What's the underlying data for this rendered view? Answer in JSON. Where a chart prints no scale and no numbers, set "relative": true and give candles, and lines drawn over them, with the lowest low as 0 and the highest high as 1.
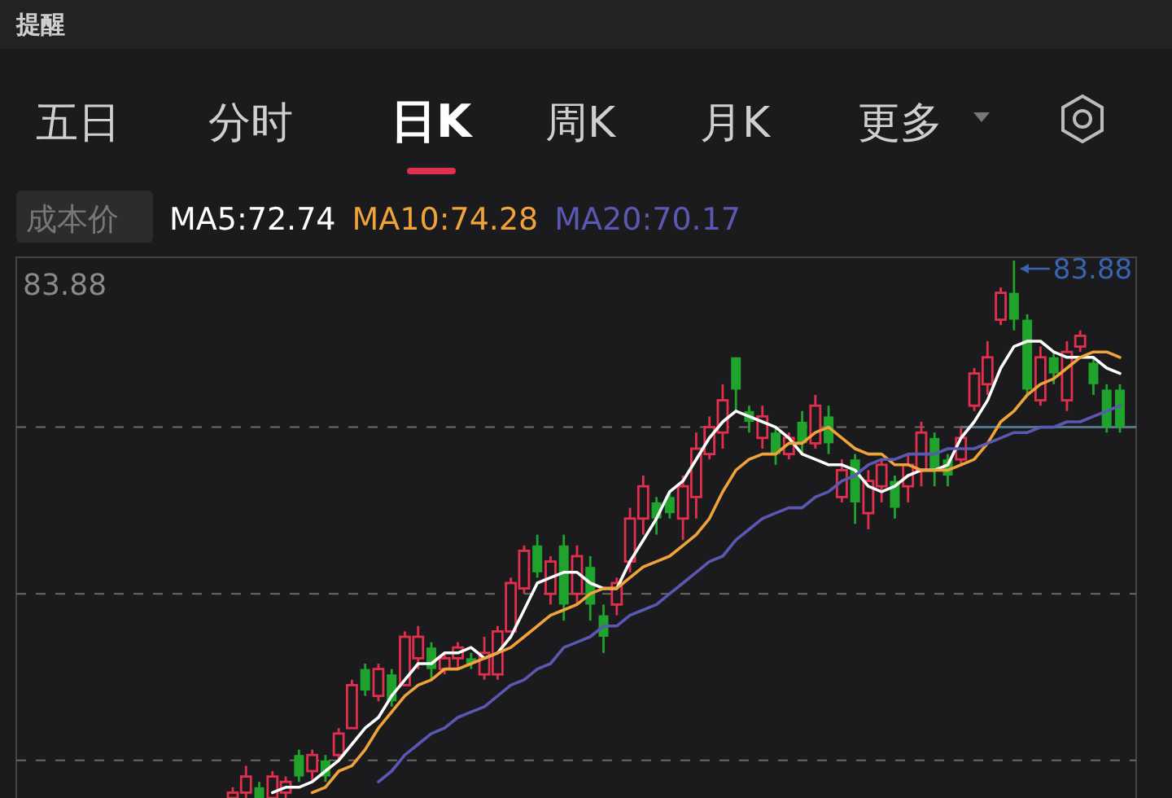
{
  "chart_data": {
    "type": "candlestick",
    "relative": true,
    "legend": "top left",
    "categories": [
      null,
      null,
      null,
      null,
      null,
      null,
      null,
      null,
      null,
      null,
      null,
      null,
      null,
      null,
      null,
      null,
      null,
      null,
      null,
      null,
      null,
      null,
      null,
      null,
      null,
      null,
      null,
      null,
      null,
      null,
      null,
      null,
      null,
      null,
      null,
      null,
      null,
      null,
      null,
      null,
      null,
      null,
      null,
      null,
      null,
      null,
      null,
      null,
      null,
      null,
      null,
      null,
      null,
      null,
      null,
      null,
      null,
      null,
      null,
      null,
      null,
      null,
      null,
      null,
      null,
      null,
      null,
      null
    ],
    "ohlc": [
      [
        0,
        0.02,
        0,
        0.01
      ],
      [
        0.01,
        0.06,
        0,
        0.04
      ],
      [
        0.02,
        0.03,
        0,
        0
      ],
      [
        0,
        0.05,
        0,
        0.04
      ],
      [
        0.01,
        0.04,
        0,
        0.03
      ],
      [
        0.08,
        0.09,
        0.03,
        0.04
      ],
      [
        0.05,
        0.09,
        0.03,
        0.08
      ],
      [
        0.07,
        0.08,
        0.03,
        0.04
      ],
      [
        0.08,
        0.13,
        0.07,
        0.12
      ],
      [
        0.13,
        0.22,
        0.13,
        0.21
      ],
      [
        0.24,
        0.25,
        0.19,
        0.2
      ],
      [
        0.19,
        0.25,
        0.18,
        0.24
      ],
      [
        0.23,
        0.24,
        0.17,
        0.18
      ],
      [
        0.21,
        0.31,
        0.21,
        0.3
      ],
      [
        0.26,
        0.32,
        0.24,
        0.3
      ],
      [
        0.28,
        0.29,
        0.22,
        0.24
      ],
      [
        0.24,
        0.27,
        0.23,
        0.26
      ],
      [
        0.26,
        0.29,
        0.24,
        0.28
      ],
      [
        0.26,
        0.27,
        0.24,
        0.25
      ],
      [
        0.23,
        0.3,
        0.22,
        0.27
      ],
      [
        0.23,
        0.32,
        0.22,
        0.31
      ],
      [
        0.31,
        0.41,
        0.31,
        0.4
      ],
      [
        0.39,
        0.47,
        0.38,
        0.46
      ],
      [
        0.47,
        0.49,
        0.41,
        0.42
      ],
      [
        0.38,
        0.45,
        0.36,
        0.44
      ],
      [
        0.47,
        0.49,
        0.33,
        0.36
      ],
      [
        0.38,
        0.47,
        0.36,
        0.45
      ],
      [
        0.43,
        0.45,
        0.33,
        0.36
      ],
      [
        0.34,
        0.36,
        0.27,
        0.3
      ],
      [
        0.36,
        0.41,
        0.34,
        0.4
      ],
      [
        0.44,
        0.54,
        0.42,
        0.52
      ],
      [
        0.52,
        0.6,
        0.49,
        0.58
      ],
      [
        0.55,
        0.56,
        0.49,
        0.52
      ],
      [
        0.56,
        0.57,
        0.52,
        0.53
      ],
      [
        0.52,
        0.6,
        0.48,
        0.58
      ],
      [
        0.56,
        0.68,
        0.52,
        0.65
      ],
      [
        0.64,
        0.71,
        0.63,
        0.69
      ],
      [
        0.68,
        0.77,
        0.65,
        0.74
      ],
      [
        0.82,
        0.82,
        0.72,
        0.76
      ],
      [
        0.72,
        0.73,
        0.68,
        0.7
      ],
      [
        0.67,
        0.73,
        0.65,
        0.71
      ],
      [
        0.68,
        0.69,
        0.62,
        0.64
      ],
      [
        0.64,
        0.68,
        0.63,
        0.67
      ],
      [
        0.7,
        0.72,
        0.64,
        0.66
      ],
      [
        0.66,
        0.75,
        0.65,
        0.73
      ],
      [
        0.71,
        0.73,
        0.64,
        0.66
      ],
      [
        0.56,
        0.63,
        0.55,
        0.61
      ],
      [
        0.63,
        0.64,
        0.51,
        0.55
      ],
      [
        0.53,
        0.61,
        0.5,
        0.59
      ],
      [
        0.58,
        0.63,
        0.55,
        0.62
      ],
      [
        0.59,
        0.6,
        0.52,
        0.54
      ],
      [
        0.58,
        0.64,
        0.55,
        0.62
      ],
      [
        0.61,
        0.7,
        0.58,
        0.68
      ],
      [
        0.67,
        0.68,
        0.58,
        0.61
      ],
      [
        0.63,
        0.64,
        0.58,
        0.6
      ],
      [
        0.63,
        0.69,
        0.62,
        0.67
      ],
      [
        0.73,
        0.8,
        0.72,
        0.79
      ],
      [
        0.77,
        0.85,
        0.75,
        0.82
      ],
      [
        0.89,
        0.95,
        0.88,
        0.94
      ],
      [
        0.94,
        1,
        0.87,
        0.89
      ],
      [
        0.89,
        0.9,
        0.75,
        0.76
      ],
      [
        0.74,
        0.84,
        0.73,
        0.82
      ],
      [
        0.82,
        0.83,
        0.77,
        0.79
      ],
      [
        0.74,
        0.85,
        0.72,
        0.83
      ],
      [
        0.84,
        0.87,
        0.83,
        0.86
      ],
      [
        0.81,
        0.82,
        0.75,
        0.77
      ],
      [
        0.76,
        0.77,
        0.68,
        0.69
      ],
      [
        0.76,
        0.77,
        0.68,
        0.69
      ]
    ],
    "series": [
      {
        "name": "MA5:72.74",
        "type": "line",
        "color": "#ffffff",
        "values": [
          null,
          null,
          null,
          0.01,
          0.02,
          0.02,
          0.03,
          0.05,
          0.07,
          0.1,
          0.13,
          0.15,
          0.19,
          0.22,
          0.25,
          0.25,
          0.27,
          0.27,
          0.28,
          0.26,
          0.27,
          0.3,
          0.35,
          0.4,
          0.41,
          0.42,
          0.42,
          0.4,
          0.39,
          0.39,
          0.44,
          0.48,
          0.52,
          0.57,
          0.59,
          0.63,
          0.67,
          0.7,
          0.72,
          0.71,
          0.7,
          0.69,
          0.67,
          0.64,
          0.63,
          0.62,
          0.62,
          0.61,
          0.58,
          0.57,
          0.58,
          0.6,
          0.61,
          0.61,
          0.62,
          0.67,
          0.7,
          0.74,
          0.8,
          0.84,
          0.85,
          0.85,
          0.83,
          0.82,
          0.82,
          0.82,
          0.8,
          0.79
        ]
      },
      {
        "name": "MA10:74.28",
        "type": "line",
        "color": "#f0a33a",
        "values": [
          null,
          null,
          null,
          null,
          null,
          null,
          0.01,
          0.02,
          0.05,
          0.06,
          0.09,
          0.13,
          0.16,
          0.19,
          0.21,
          0.22,
          0.24,
          0.24,
          0.25,
          0.26,
          0.27,
          0.28,
          0.3,
          0.32,
          0.34,
          0.35,
          0.36,
          0.38,
          0.39,
          0.39,
          0.41,
          0.43,
          0.44,
          0.45,
          0.47,
          0.49,
          0.52,
          0.57,
          0.61,
          0.63,
          0.64,
          0.64,
          0.66,
          0.66,
          0.68,
          0.69,
          0.67,
          0.65,
          0.64,
          0.64,
          0.62,
          0.62,
          0.61,
          0.61,
          0.61,
          0.62,
          0.63,
          0.66,
          0.7,
          0.72,
          0.75,
          0.77,
          0.78,
          0.8,
          0.82,
          0.83,
          0.83,
          0.82
        ]
      },
      {
        "name": "MA20:70.17",
        "type": "line",
        "color": "#5a58b0",
        "values": [
          null,
          null,
          null,
          null,
          null,
          null,
          null,
          null,
          null,
          null,
          null,
          0.03,
          0.05,
          0.08,
          0.1,
          0.12,
          0.13,
          0.15,
          0.16,
          0.17,
          0.19,
          0.21,
          0.22,
          0.24,
          0.25,
          0.28,
          0.29,
          0.3,
          0.32,
          0.32,
          0.34,
          0.35,
          0.36,
          0.38,
          0.4,
          0.42,
          0.44,
          0.45,
          0.48,
          0.5,
          0.52,
          0.53,
          0.54,
          0.54,
          0.56,
          0.57,
          0.59,
          0.6,
          0.62,
          0.63,
          0.63,
          0.64,
          0.64,
          0.64,
          0.65,
          0.65,
          0.65,
          0.66,
          0.67,
          0.68,
          0.68,
          0.69,
          0.69,
          0.7,
          0.7,
          0.71,
          0.72,
          0.73
        ]
      }
    ],
    "ref_lines": [
      {
        "axis": "y",
        "value": 0.69,
        "color": "#6a6a6a",
        "line_style": "dashed"
      },
      {
        "axis": "y",
        "value": 0.38,
        "color": "#6a6a6a",
        "line_style": "dashed"
      },
      {
        "axis": "y",
        "value": 0.07,
        "color": "#6a6a6a",
        "line_style": "dashed"
      },
      {
        "axis": "y",
        "value": 0.69,
        "color": "#4f7590",
        "line_style": "solid"
      }
    ],
    "annotations": [
      "提醒",
      "五日",
      "分时",
      "日K",
      "周K",
      "月K",
      "更多",
      "成本价",
      "83.88",
      "83.88"
    ]
  }
}
